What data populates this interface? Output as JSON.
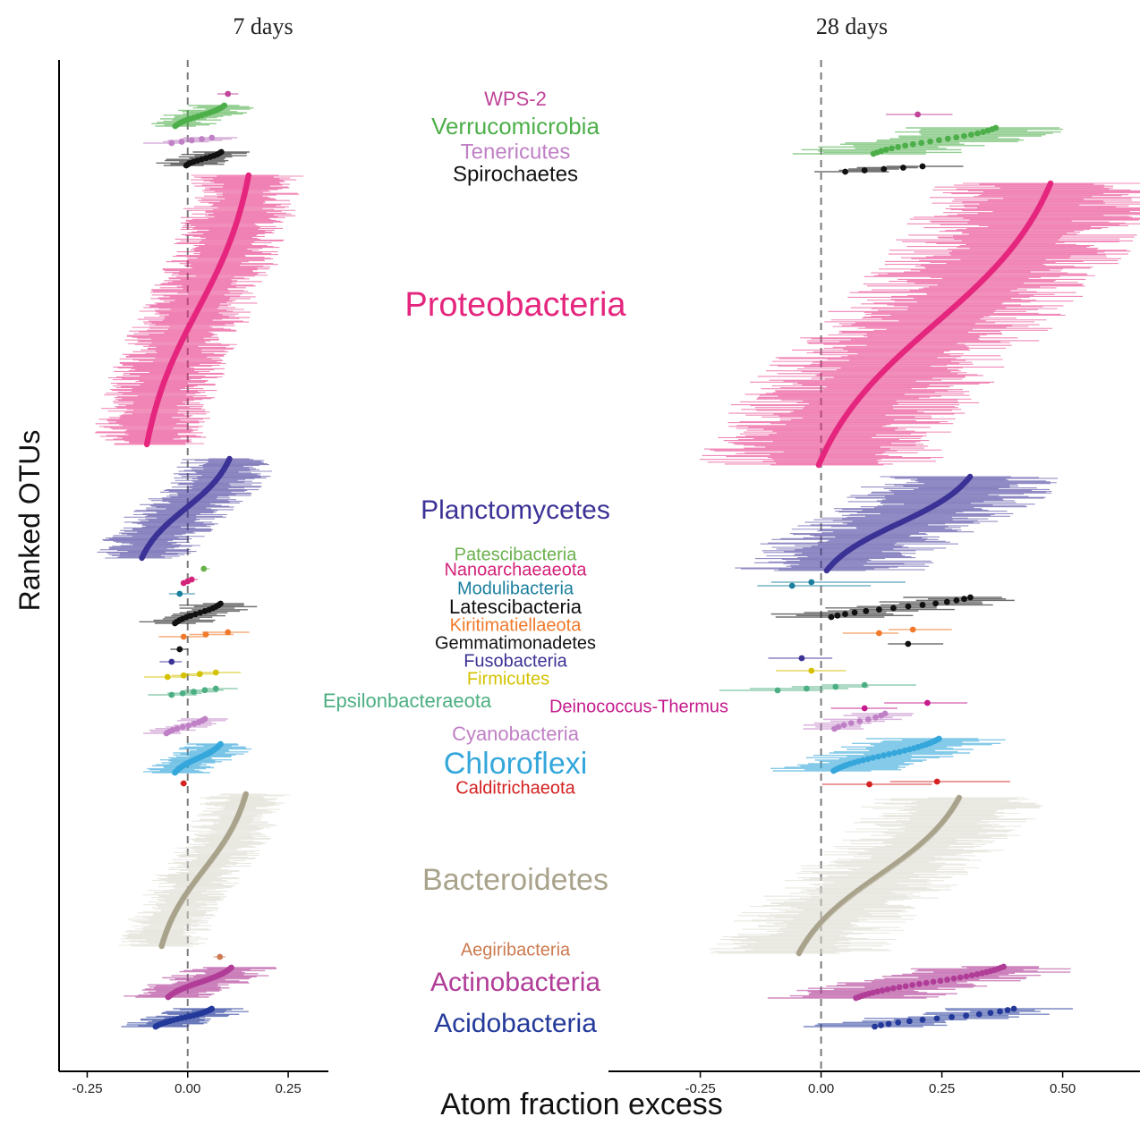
{
  "chart_data": {
    "type": "scatter",
    "description_free": true,
    "panels": [
      {
        "id": "7d",
        "title": "7 days",
        "xlim": [
          -0.32,
          0.35
        ],
        "ticks": [
          -0.25,
          0.0,
          0.25
        ],
        "tick_labels": [
          "-0.25",
          "0.00",
          "0.25"
        ],
        "reference_line_x": 0.0
      },
      {
        "id": "28d",
        "title": "28 days",
        "xlim": [
          -0.44,
          0.66
        ],
        "ticks": [
          -0.25,
          0.0,
          0.25,
          0.5
        ],
        "tick_labels": [
          "-0.25",
          "0.00",
          "0.25",
          "0.50"
        ],
        "reference_line_x": 0.0
      }
    ],
    "xlabel": "Atom fraction excess",
    "ylabel": "Ranked OTUs",
    "grid": false,
    "legend": "inline phylum labels between panels",
    "series": [
      {
        "name": "WPS-2",
        "color": "#c0449a",
        "label_size": 22,
        "d7": {
          "n": 1,
          "min": 0.1,
          "max": 0.1,
          "err": 0.05
        },
        "d28": {
          "n": 1,
          "min": 0.2,
          "max": 0.2,
          "err": 0.06
        }
      },
      {
        "name": "Verrucomicrobia",
        "color": "#4daf4a",
        "label_size": 26,
        "d7": {
          "n": 18,
          "min": -0.04,
          "max": 0.1,
          "err": 0.06
        },
        "d28": {
          "n": 20,
          "min": 0.09,
          "max": 0.38,
          "err": 0.12
        }
      },
      {
        "name": "Tenericutes",
        "color": "#c080c6",
        "label_size": 24,
        "d7": {
          "n": 5,
          "min": -0.04,
          "max": 0.06,
          "err": 0.05
        },
        "d28": {
          "n": 0
        }
      },
      {
        "name": "Spirochaetes",
        "color": "#111111",
        "label_size": 24,
        "d7": {
          "n": 12,
          "min": -0.01,
          "max": 0.09,
          "err": 0.06
        },
        "d28": {
          "n": 5,
          "min": 0.05,
          "max": 0.21,
          "err": 0.06
        }
      },
      {
        "name": "Proteobacteria",
        "color": "#e5267e",
        "label_size": 38,
        "d7": {
          "n": 300,
          "min": -0.12,
          "max": 0.17,
          "err": 0.09
        },
        "d28": {
          "n": 300,
          "min": -0.04,
          "max": 0.51,
          "err": 0.16
        }
      },
      {
        "name": "Planctomycetes",
        "color": "#3b3296",
        "label_size": 30,
        "d7": {
          "n": 120,
          "min": -0.13,
          "max": 0.12,
          "err": 0.08
        },
        "d28": {
          "n": 110,
          "min": -0.01,
          "max": 0.33,
          "err": 0.13
        }
      },
      {
        "name": "Patescibacteria",
        "color": "#6ab04c",
        "label_size": 20,
        "d7": {
          "n": 1,
          "min": 0.04,
          "max": 0.04,
          "err": 0.01
        },
        "d28": {
          "n": 0
        }
      },
      {
        "name": "Nanoarchaeaeota",
        "color": "#d4237a",
        "label_size": 20,
        "d7": {
          "n": 3,
          "min": -0.01,
          "max": 0.01,
          "err": 0.01
        },
        "d28": {
          "n": 0
        }
      },
      {
        "name": "Modulibacteria",
        "color": "#1a7f9e",
        "label_size": 20,
        "d7": {
          "n": 1,
          "min": -0.02,
          "max": -0.02,
          "err": 0.04
        },
        "d28": {
          "n": 2,
          "min": -0.06,
          "max": -0.02,
          "err": 0.14
        }
      },
      {
        "name": "Latescibacteria",
        "color": "#111111",
        "label_size": 22,
        "d7": {
          "n": 14,
          "min": -0.04,
          "max": 0.09,
          "err": 0.07
        },
        "d28": {
          "n": 14,
          "min": 0.0,
          "max": 0.33,
          "err": 0.1
        }
      },
      {
        "name": "Kiritimatiellaeota",
        "color": "#f07a2a",
        "label_size": 20,
        "d7": {
          "n": 3,
          "min": -0.01,
          "max": 0.1,
          "err": 0.05
        },
        "d28": {
          "n": 2,
          "min": 0.12,
          "max": 0.19,
          "err": 0.06
        }
      },
      {
        "name": "Gemmatimonadetes",
        "color": "#111111",
        "label_size": 20,
        "d7": {
          "n": 1,
          "min": -0.02,
          "max": -0.02,
          "err": 0.03
        },
        "d28": {
          "n": 1,
          "min": 0.18,
          "max": 0.18,
          "err": 0.06
        }
      },
      {
        "name": "Fusobacteria",
        "color": "#3b3296",
        "label_size": 20,
        "d7": {
          "n": 1,
          "min": -0.04,
          "max": -0.04,
          "err": 0.03
        },
        "d28": {
          "n": 1,
          "min": -0.04,
          "max": -0.04,
          "err": 0.06
        }
      },
      {
        "name": "Firmicutes",
        "color": "#d4c200",
        "label_size": 20,
        "d7": {
          "n": 4,
          "min": -0.05,
          "max": 0.07,
          "err": 0.05
        },
        "d28": {
          "n": 1,
          "min": -0.02,
          "max": -0.02,
          "err": 0.05
        }
      },
      {
        "name": "Epsilonbacteraeota",
        "color": "#4caf82",
        "label_size": 22,
        "d7": {
          "n": 5,
          "min": -0.04,
          "max": 0.07,
          "err": 0.04
        },
        "d28": {
          "n": 4,
          "min": -0.09,
          "max": 0.09,
          "err": 0.08
        }
      },
      {
        "name": "Deinococcus-Thermus",
        "color": "#c41b8c",
        "label_size": 20,
        "d7": {
          "n": 0
        },
        "d28": {
          "n": 2,
          "min": 0.09,
          "max": 0.22,
          "err": 0.06
        }
      },
      {
        "name": "Cyanobacteria",
        "color": "#c080c6",
        "label_size": 22,
        "d7": {
          "n": 10,
          "min": -0.06,
          "max": 0.05,
          "err": 0.04
        },
        "d28": {
          "n": 9,
          "min": 0.02,
          "max": 0.14,
          "err": 0.06
        }
      },
      {
        "name": "Chloroflexi",
        "color": "#35a7db",
        "label_size": 34,
        "d7": {
          "n": 30,
          "min": -0.04,
          "max": 0.09,
          "err": 0.06
        },
        "d28": {
          "n": 28,
          "min": 0.01,
          "max": 0.26,
          "err": 0.1
        }
      },
      {
        "name": "Calditrichaeota",
        "color": "#d42121",
        "label_size": 20,
        "d7": {
          "n": 1,
          "min": -0.01,
          "max": -0.01,
          "err": 0.01
        },
        "d28": {
          "n": 2,
          "min": 0.1,
          "max": 0.24,
          "err": 0.11
        }
      },
      {
        "name": "Bacteroidetes",
        "color": "#a9a38c",
        "fill": "#d9d7ca",
        "label_size": 34,
        "d7": {
          "n": 170,
          "min": -0.08,
          "max": 0.16,
          "err": 0.07
        },
        "d28": {
          "n": 170,
          "min": -0.07,
          "max": 0.31,
          "err": 0.12
        }
      },
      {
        "name": "Aegiribacteria",
        "color": "#cc7a4f",
        "label_size": 20,
        "d7": {
          "n": 1,
          "min": 0.08,
          "max": 0.08,
          "err": 0.01
        },
        "d28": {
          "n": 0
        }
      },
      {
        "name": "Actinobacteria",
        "color": "#b03d97",
        "label_size": 30,
        "d7": {
          "n": 30,
          "min": -0.06,
          "max": 0.12,
          "err": 0.08
        },
        "d28": {
          "n": 30,
          "min": 0.05,
          "max": 0.4,
          "err": 0.12
        }
      },
      {
        "name": "Acidobacteria",
        "color": "#23399a",
        "label_size": 30,
        "d7": {
          "n": 20,
          "min": -0.09,
          "max": 0.07,
          "err": 0.07
        },
        "d28": {
          "n": 14,
          "min": 0.09,
          "max": 0.42,
          "err": 0.1
        }
      }
    ]
  }
}
